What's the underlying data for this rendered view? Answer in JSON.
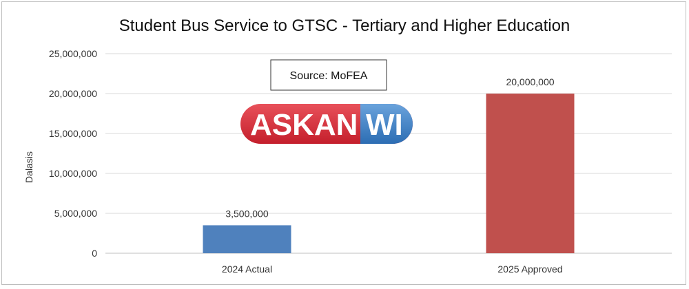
{
  "chart_data": {
    "type": "bar",
    "title": "Student Bus Service to GTSC - Tertiary and Higher Education",
    "ylabel": "Dalasis",
    "xlabel": "",
    "categories": [
      "2024 Actual",
      "2025 Approved"
    ],
    "values": [
      3500000,
      20000000
    ],
    "data_labels": [
      "3,500,000",
      "20,000,000"
    ],
    "bar_colors": [
      "#4f81bd",
      "#c0504d"
    ],
    "ylim": [
      0,
      25000000
    ],
    "yticks": [
      0,
      5000000,
      10000000,
      15000000,
      20000000,
      25000000
    ],
    "ytick_labels": [
      "0",
      "5,000,000",
      "10,000,000",
      "15,000,000",
      "20,000,000",
      "25,000,000"
    ],
    "grid": true,
    "legend": "none"
  },
  "annotations": {
    "source": "Source: MoFEA",
    "logo_left": "ASKAN",
    "logo_right": "WI"
  },
  "colors": {
    "gridline": "#d9d9d9",
    "axis": "#bfbfbf",
    "logo_red": "#d9333f",
    "logo_blue": "#3f83c8"
  }
}
